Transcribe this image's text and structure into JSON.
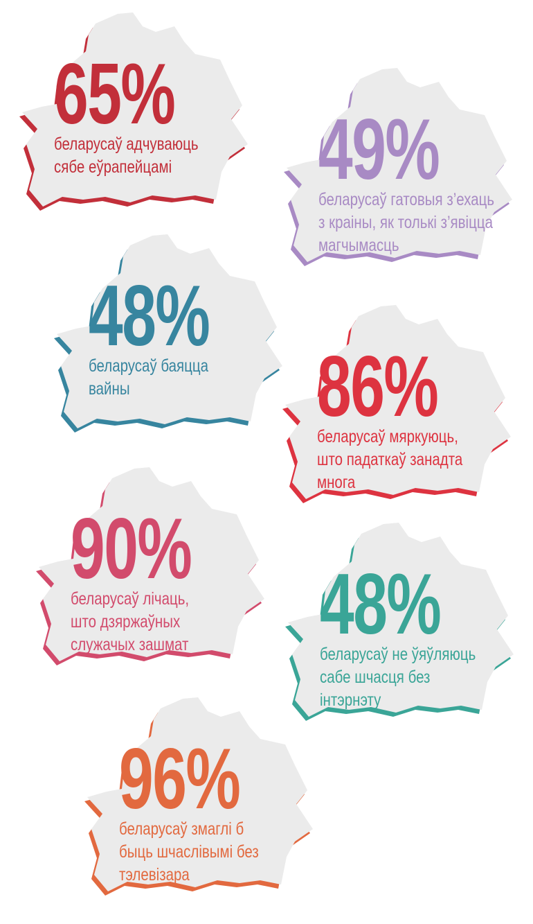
{
  "items": [
    {
      "percent": "65%",
      "lines": [
        "беларусаў адчуваюць",
        "сябе еўрапейцамі"
      ],
      "color": "#c22f3a"
    },
    {
      "percent": "49%",
      "lines": [
        "беларусаў гатовыя з’ехаць",
        "з краіны, як толькі з’явіцца",
        "магчымасць"
      ],
      "color": "#a88ac4"
    },
    {
      "percent": "48%",
      "lines": [
        "беларусаў баяцца",
        "вайны"
      ],
      "color": "#37859f"
    },
    {
      "percent": "86%",
      "lines": [
        "беларусаў мяркуюць,",
        "што падаткаў занадта",
        "многа"
      ],
      "color": "#dd3340"
    },
    {
      "percent": "90%",
      "lines": [
        "беларусаў лічаць,",
        "што дзяржаўных",
        "служачых зашмат"
      ],
      "color": "#d24b6c"
    },
    {
      "percent": "48%",
      "lines": [
        "беларусаў не ўяўляюць",
        "сабе шчасця без",
        "інтэрнэту"
      ],
      "color": "#3aa597"
    },
    {
      "percent": "96%",
      "lines": [
        "беларусаў змаглі б",
        "быць шчаслівымі без",
        "тэлевізара"
      ],
      "color": "#e2693f"
    }
  ]
}
